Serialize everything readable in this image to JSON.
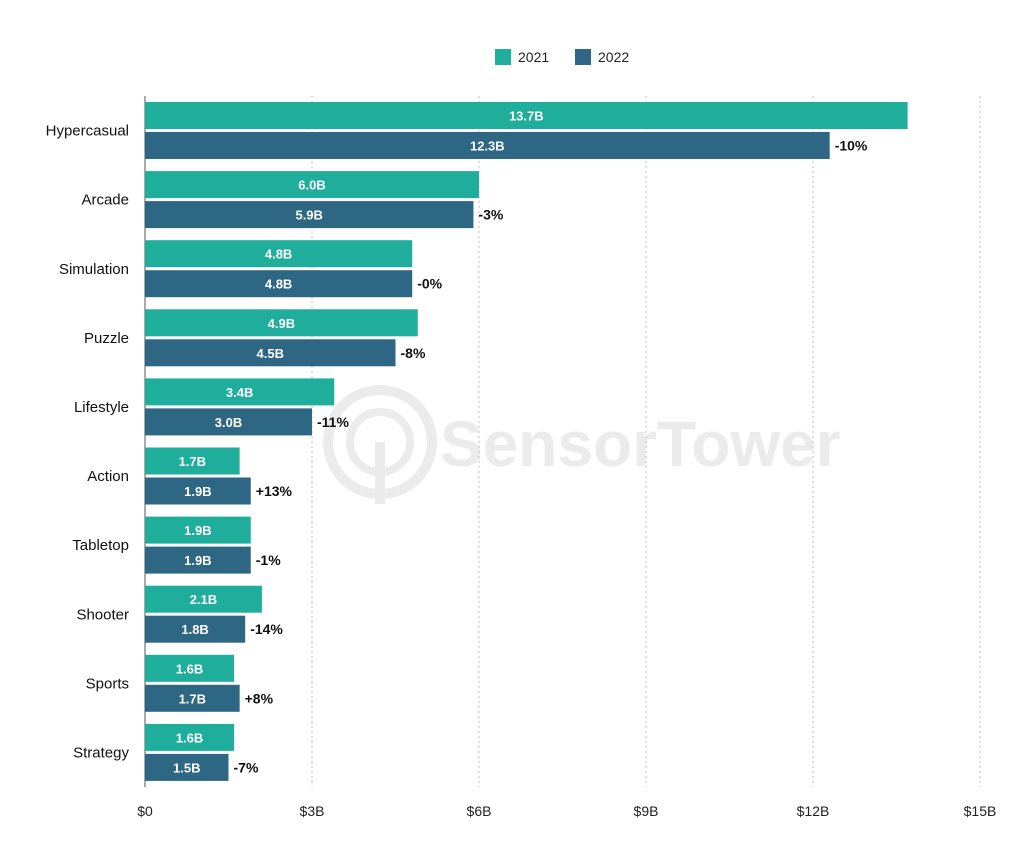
{
  "chart_data": {
    "type": "bar",
    "orientation": "horizontal",
    "categories": [
      "Hypercasual",
      "Arcade",
      "Simulation",
      "Puzzle",
      "Lifestyle",
      "Action",
      "Tabletop",
      "Shooter",
      "Sports",
      "Strategy"
    ],
    "series": [
      {
        "name": "2021",
        "color": "#1fae9c",
        "values": [
          13.7,
          6.0,
          4.8,
          4.9,
          3.4,
          1.7,
          1.9,
          2.1,
          1.6,
          1.6
        ],
        "labels": [
          "13.7B",
          "6.0B",
          "4.8B",
          "4.9B",
          "3.4B",
          "1.7B",
          "1.9B",
          "2.1B",
          "1.6B",
          "1.6B"
        ]
      },
      {
        "name": "2022",
        "color": "#2d6783",
        "values": [
          12.3,
          5.9,
          4.8,
          4.5,
          3.0,
          1.9,
          1.9,
          1.8,
          1.7,
          1.5
        ],
        "labels": [
          "12.3B",
          "5.9B",
          "4.8B",
          "4.5B",
          "3.0B",
          "1.9B",
          "1.9B",
          "1.8B",
          "1.7B",
          "1.5B"
        ]
      }
    ],
    "change_labels": [
      "-10%",
      "-3%",
      "-0%",
      "-8%",
      "-11%",
      "+13%",
      "-1%",
      "-14%",
      "+8%",
      "-7%"
    ],
    "xlim": [
      0,
      15
    ],
    "x_ticks": [
      0,
      3,
      6,
      9,
      12,
      15
    ],
    "x_tick_labels": [
      "$0",
      "$3B",
      "$6B",
      "$9B",
      "$12B",
      "$15B"
    ],
    "legend_position": "top-center",
    "grid": "vertical-dotted",
    "watermark": "SensorTower",
    "title": "",
    "xlabel": "",
    "ylabel": ""
  }
}
